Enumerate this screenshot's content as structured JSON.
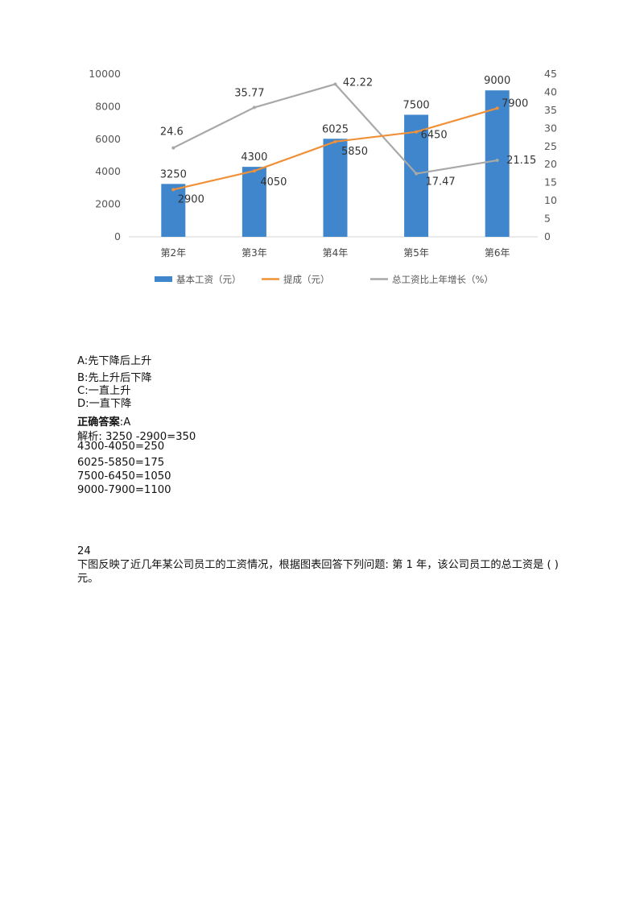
{
  "chart_data": {
    "type": "bar",
    "categories": [
      "第2年",
      "第3年",
      "第4年",
      "第5年",
      "第6年"
    ],
    "series": [
      {
        "name": "基本工资（元）",
        "type": "bar",
        "axis": "left",
        "color": "#3f86cc",
        "values": [
          3250,
          4300,
          6025,
          7500,
          9000
        ]
      },
      {
        "name": "提成（元）",
        "type": "line",
        "axis": "left",
        "color": "#f0913a",
        "values": [
          2900,
          4050,
          5850,
          6450,
          7900
        ]
      },
      {
        "name": "总工资比上年增长（%）",
        "type": "line",
        "axis": "right",
        "color": "#a8a8a8",
        "values": [
          24.6,
          35.77,
          42.22,
          17.47,
          21.15
        ]
      }
    ],
    "y_left": {
      "ticks": [
        "0",
        "2000",
        "4000",
        "6000",
        "8000",
        "10000"
      ],
      "range": [
        0,
        10000
      ]
    },
    "y_right": {
      "ticks": [
        "0",
        "5",
        "10",
        "15",
        "20",
        "25",
        "30",
        "35",
        "40",
        "45"
      ],
      "range": [
        0,
        45
      ]
    },
    "labels": {
      "bar": [
        "3250",
        "4300",
        "6025",
        "7500",
        "9000"
      ],
      "commission": [
        "2900",
        "4050",
        "5850",
        "6450",
        "7900"
      ],
      "growth": [
        "24.6",
        "35.77",
        "42.22",
        "17.47",
        "21.15"
      ]
    },
    "legend_position": "bottom"
  },
  "options": [
    {
      "text": "A:先下降后上升"
    },
    {
      "text": "B:先上升后下降"
    },
    {
      "text": "C:一直上升"
    },
    {
      "text": "D:一直下降"
    }
  ],
  "answer": {
    "label": "正确答案",
    "value": ":A"
  },
  "analysis": [
    "解析: 3250 -2900=350",
    "4300-4050=250",
    "6025-5850=175",
    "7500-6450=1050",
    "9000-7900=1100"
  ],
  "next_question": {
    "number": "24",
    "text": "下图反映了近几年某公司员工的工资情况，根据图表回答下列问题: 第 1 年，该公司员工的总工资是 ( )元。"
  }
}
